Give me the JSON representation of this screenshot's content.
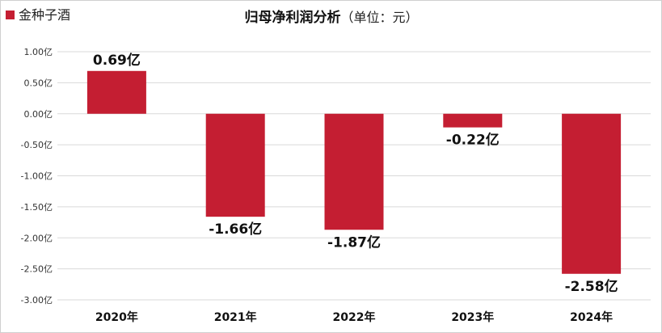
{
  "chart_data": {
    "type": "bar",
    "title": "归母净利润分析",
    "title_unit": "（单位：元）",
    "legend": {
      "label": "金种子酒",
      "placement": "top-left"
    },
    "categories": [
      "2020年",
      "2021年",
      "2022年",
      "2023年",
      "2024年"
    ],
    "series": [
      {
        "name": "金种子酒",
        "color": "#c41e32",
        "values": [
          0.69,
          -1.66,
          -1.87,
          -0.22,
          -2.58
        ]
      }
    ],
    "data_labels": [
      "0.69亿",
      "-1.66亿",
      "-1.87亿",
      "-0.22亿",
      "-2.58亿"
    ],
    "ylim": [
      -3.0,
      1.0
    ],
    "yticks": [
      1.0,
      0.5,
      0.0,
      -0.5,
      -1.0,
      -1.5,
      -2.0,
      -2.5,
      -3.0
    ],
    "ytick_labels": [
      "1.00亿",
      "0.50亿",
      "0.00亿",
      "-0.50亿",
      "-1.00亿",
      "-1.50亿",
      "-2.00亿",
      "-2.50亿",
      "-3.00亿"
    ],
    "grid": true,
    "colors": {
      "bar": "#c41e32",
      "grid": "#d9d9d9"
    }
  }
}
